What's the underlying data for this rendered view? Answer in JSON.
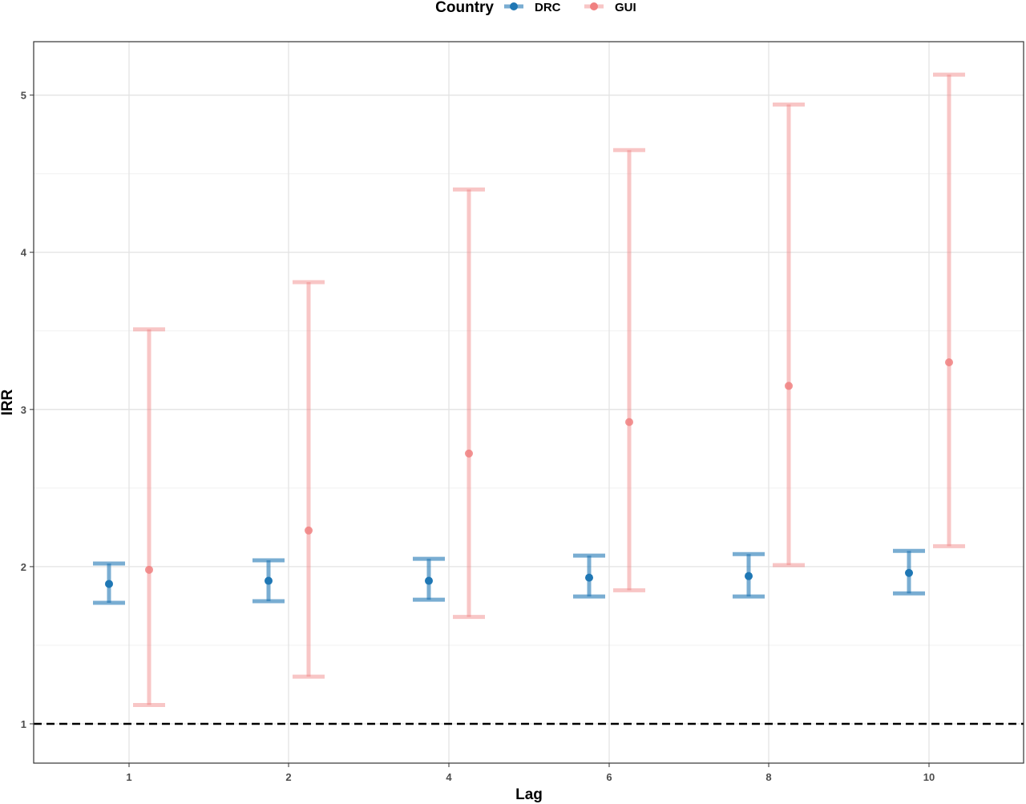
{
  "chart_data": {
    "type": "errorbar",
    "xlabel": "Lag",
    "ylabel": "IRR",
    "categories": [
      "1",
      "2",
      "4",
      "6",
      "8",
      "10"
    ],
    "ylim": [
      0.75,
      5.34
    ],
    "yticks": [
      1,
      2,
      3,
      4,
      5
    ],
    "reference_line": {
      "y": 1,
      "style": "dashed"
    },
    "grid": true,
    "legend": {
      "title": "Country",
      "position": "top"
    },
    "series": [
      {
        "name": "DRC",
        "color": "#1f77b4",
        "values": [
          1.89,
          1.91,
          1.91,
          1.93,
          1.94,
          1.96
        ],
        "lower": [
          1.77,
          1.78,
          1.79,
          1.81,
          1.81,
          1.83
        ],
        "upper": [
          2.02,
          2.04,
          2.05,
          2.07,
          2.08,
          2.1
        ]
      },
      {
        "name": "GUI",
        "color": "#f08080",
        "values": [
          1.98,
          2.23,
          2.72,
          2.92,
          3.15,
          3.3
        ],
        "lower": [
          1.12,
          1.3,
          1.68,
          1.85,
          2.01,
          2.13
        ],
        "upper": [
          3.51,
          3.81,
          4.4,
          4.65,
          4.94,
          5.13
        ]
      }
    ]
  }
}
